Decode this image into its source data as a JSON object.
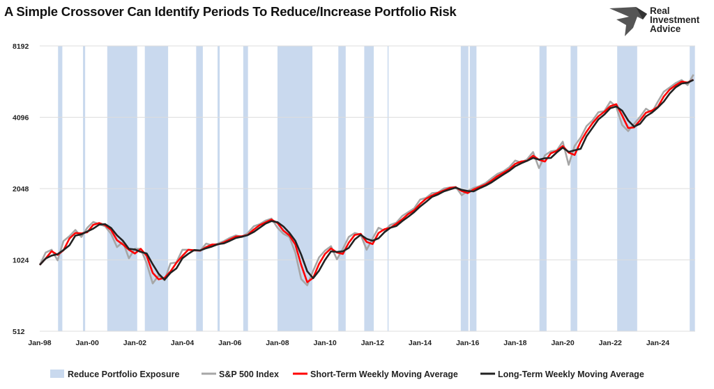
{
  "title": "A Simple Crossover Can Identify Periods To Reduce/Increase Portfolio Risk",
  "logo": {
    "lines": [
      "Real",
      "Investment",
      "Advice"
    ],
    "icon": "eagle-icon"
  },
  "chart_data": {
    "type": "line",
    "title": "A Simple Crossover Can Identify Periods To Reduce/Increase Portfolio Risk",
    "y_scale": "log2",
    "ylim": [
      512,
      8192
    ],
    "y_ticks": [
      8192,
      4096,
      2048,
      1024,
      512
    ],
    "xlim": [
      1998.0,
      2025.57
    ],
    "x_tick_labels": [
      "Jan-98",
      "Jan-00",
      "Jan-02",
      "Jan-04",
      "Jan-06",
      "Jan-08",
      "Jan-10",
      "Jan-12",
      "Jan-14",
      "Jan-16",
      "Jan-18",
      "Jan-20",
      "Jan-22",
      "Jan-24"
    ],
    "x_ticks": [
      1998,
      2000,
      2002,
      2004,
      2006,
      2008,
      2010,
      2012,
      2014,
      2016,
      2018,
      2020,
      2022,
      2024
    ],
    "grid": "horizontal",
    "legend_position": "bottom",
    "x_start": 1998.0,
    "x_step_years": 0.25,
    "reduce_exposure_periods": [
      [
        1998.77,
        1998.95
      ],
      [
        1999.82,
        1999.91
      ],
      [
        2000.84,
        2002.1
      ],
      [
        2002.42,
        2003.4
      ],
      [
        2004.58,
        2004.86
      ],
      [
        2005.48,
        2005.57
      ],
      [
        2006.56,
        2006.76
      ],
      [
        2008.0,
        2009.47
      ],
      [
        2010.56,
        2010.87
      ],
      [
        2011.65,
        2012.05
      ],
      [
        2012.63,
        2012.67
      ],
      [
        2015.71,
        2016.03
      ],
      [
        2016.09,
        2016.37
      ],
      [
        2019.02,
        2019.32
      ],
      [
        2020.33,
        2020.61
      ],
      [
        2022.29,
        2023.13
      ],
      [
        2025.34,
        2025.56
      ]
    ],
    "series": [
      {
        "name": "Reduce Portfolio Exposure",
        "kind": "shaded",
        "color": "#c9d9ee"
      },
      {
        "name": "S&P 500 Index",
        "color": "#a6a6a6",
        "values": [
          975,
          1100,
          1130,
          1020,
          1230,
          1290,
          1370,
          1280,
          1400,
          1480,
          1450,
          1420,
          1320,
          1160,
          1220,
          1040,
          1140,
          1140,
          990,
          815,
          880,
          840,
          990,
          1000,
          1130,
          1130,
          1120,
          1120,
          1200,
          1180,
          1200,
          1230,
          1270,
          1300,
          1280,
          1330,
          1420,
          1450,
          1500,
          1530,
          1400,
          1320,
          1280,
          1100,
          850,
          800,
          920,
          1050,
          1120,
          1170,
          1030,
          1140,
          1280,
          1330,
          1310,
          1130,
          1260,
          1400,
          1360,
          1440,
          1470,
          1570,
          1630,
          1690,
          1840,
          1870,
          1960,
          1970,
          2050,
          2070,
          2080,
          1920,
          2000,
          2060,
          2100,
          2160,
          2260,
          2360,
          2420,
          2520,
          2690,
          2640,
          2720,
          2920,
          2500,
          2830,
          2940,
          2970,
          3230,
          2580,
          3100,
          3360,
          3760,
          3970,
          4300,
          4350,
          4770,
          4530,
          3800,
          3580,
          3840,
          4110,
          4450,
          4290,
          4770,
          5250,
          5470,
          5710,
          5880,
          5600,
          6200
        ]
      },
      {
        "name": "Short-Term Weekly Moving Average",
        "color": "#ff0000",
        "values": [
          975,
          1038,
          1115,
          1075,
          1125,
          1260,
          1330,
          1325,
          1340,
          1440,
          1465,
          1435,
          1370,
          1240,
          1190,
          1130,
          1090,
          1140,
          1065,
          903,
          848,
          860,
          915,
          995,
          1065,
          1130,
          1125,
          1120,
          1160,
          1190,
          1190,
          1215,
          1250,
          1285,
          1290,
          1305,
          1375,
          1435,
          1475,
          1515,
          1465,
          1360,
          1300,
          1190,
          975,
          825,
          860,
          985,
          1085,
          1145,
          1100,
          1085,
          1210,
          1305,
          1320,
          1220,
          1195,
          1330,
          1380,
          1400,
          1455,
          1520,
          1600,
          1660,
          1765,
          1855,
          1915,
          1965,
          2010,
          2060,
          2075,
          2000,
          1960,
          2030,
          2080,
          2130,
          2210,
          2310,
          2390,
          2470,
          2605,
          2665,
          2680,
          2820,
          2710,
          2665,
          2885,
          2955,
          3100,
          2905,
          2840,
          3230,
          3560,
          3865,
          4135,
          4325,
          4560,
          4650,
          4165,
          3690,
          3710,
          3975,
          4280,
          4370,
          4530,
          5010,
          5360,
          5590,
          5795,
          5740,
          5900
        ]
      },
      {
        "name": "Long-Term Weekly Moving Average",
        "color": "#222222",
        "values": [
          975,
          1038,
          1068,
          1083,
          1127,
          1180,
          1297,
          1313,
          1350,
          1387,
          1443,
          1450,
          1397,
          1300,
          1233,
          1140,
          1133,
          1107,
          1090,
          982,
          895,
          845,
          903,
          943,
          1040,
          1087,
          1127,
          1123,
          1147,
          1167,
          1193,
          1203,
          1233,
          1267,
          1283,
          1303,
          1343,
          1400,
          1457,
          1493,
          1477,
          1417,
          1333,
          1233,
          1077,
          917,
          857,
          923,
          1023,
          1113,
          1107,
          1113,
          1150,
          1250,
          1307,
          1257,
          1233,
          1263,
          1340,
          1400,
          1423,
          1493,
          1557,
          1630,
          1720,
          1800,
          1890,
          1933,
          1993,
          2030,
          2067,
          2023,
          2000,
          1993,
          2053,
          2107,
          2173,
          2260,
          2347,
          2433,
          2543,
          2617,
          2683,
          2760,
          2713,
          2750,
          2757,
          2913,
          3047,
          2927,
          2970,
          3013,
          3407,
          3697,
          4010,
          4207,
          4473,
          4550,
          4367,
          3970,
          3740,
          3843,
          4133,
          4283,
          4503,
          4770,
          5163,
          5477,
          5687,
          5730,
          5893
        ]
      }
    ]
  }
}
